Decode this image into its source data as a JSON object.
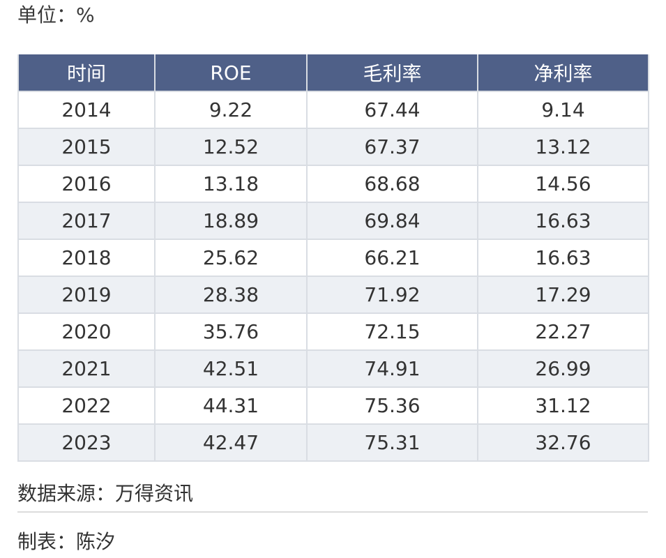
{
  "unit_label": "单位：%",
  "source_label": "数据来源：万得资讯",
  "maker_label": "制表：陈汐",
  "colors": {
    "header_bg": "#4f6088",
    "header_text": "#ffffff",
    "row_alt_bg": "#edf0f4",
    "grid": "#d9dde3"
  },
  "chart_data": {
    "type": "table",
    "columns": [
      "时间",
      "ROE",
      "毛利率",
      "净利率"
    ],
    "rows": [
      [
        "2014",
        "9.22",
        "67.44",
        "9.14"
      ],
      [
        "2015",
        "12.52",
        "67.37",
        "13.12"
      ],
      [
        "2016",
        "13.18",
        "68.68",
        "14.56"
      ],
      [
        "2017",
        "18.89",
        "69.84",
        "16.63"
      ],
      [
        "2018",
        "25.62",
        "66.21",
        "16.63"
      ],
      [
        "2019",
        "28.38",
        "71.92",
        "17.29"
      ],
      [
        "2020",
        "35.76",
        "72.15",
        "22.27"
      ],
      [
        "2021",
        "42.51",
        "74.91",
        "26.99"
      ],
      [
        "2022",
        "44.31",
        "75.36",
        "31.12"
      ],
      [
        "2023",
        "42.47",
        "75.31",
        "32.76"
      ]
    ]
  }
}
